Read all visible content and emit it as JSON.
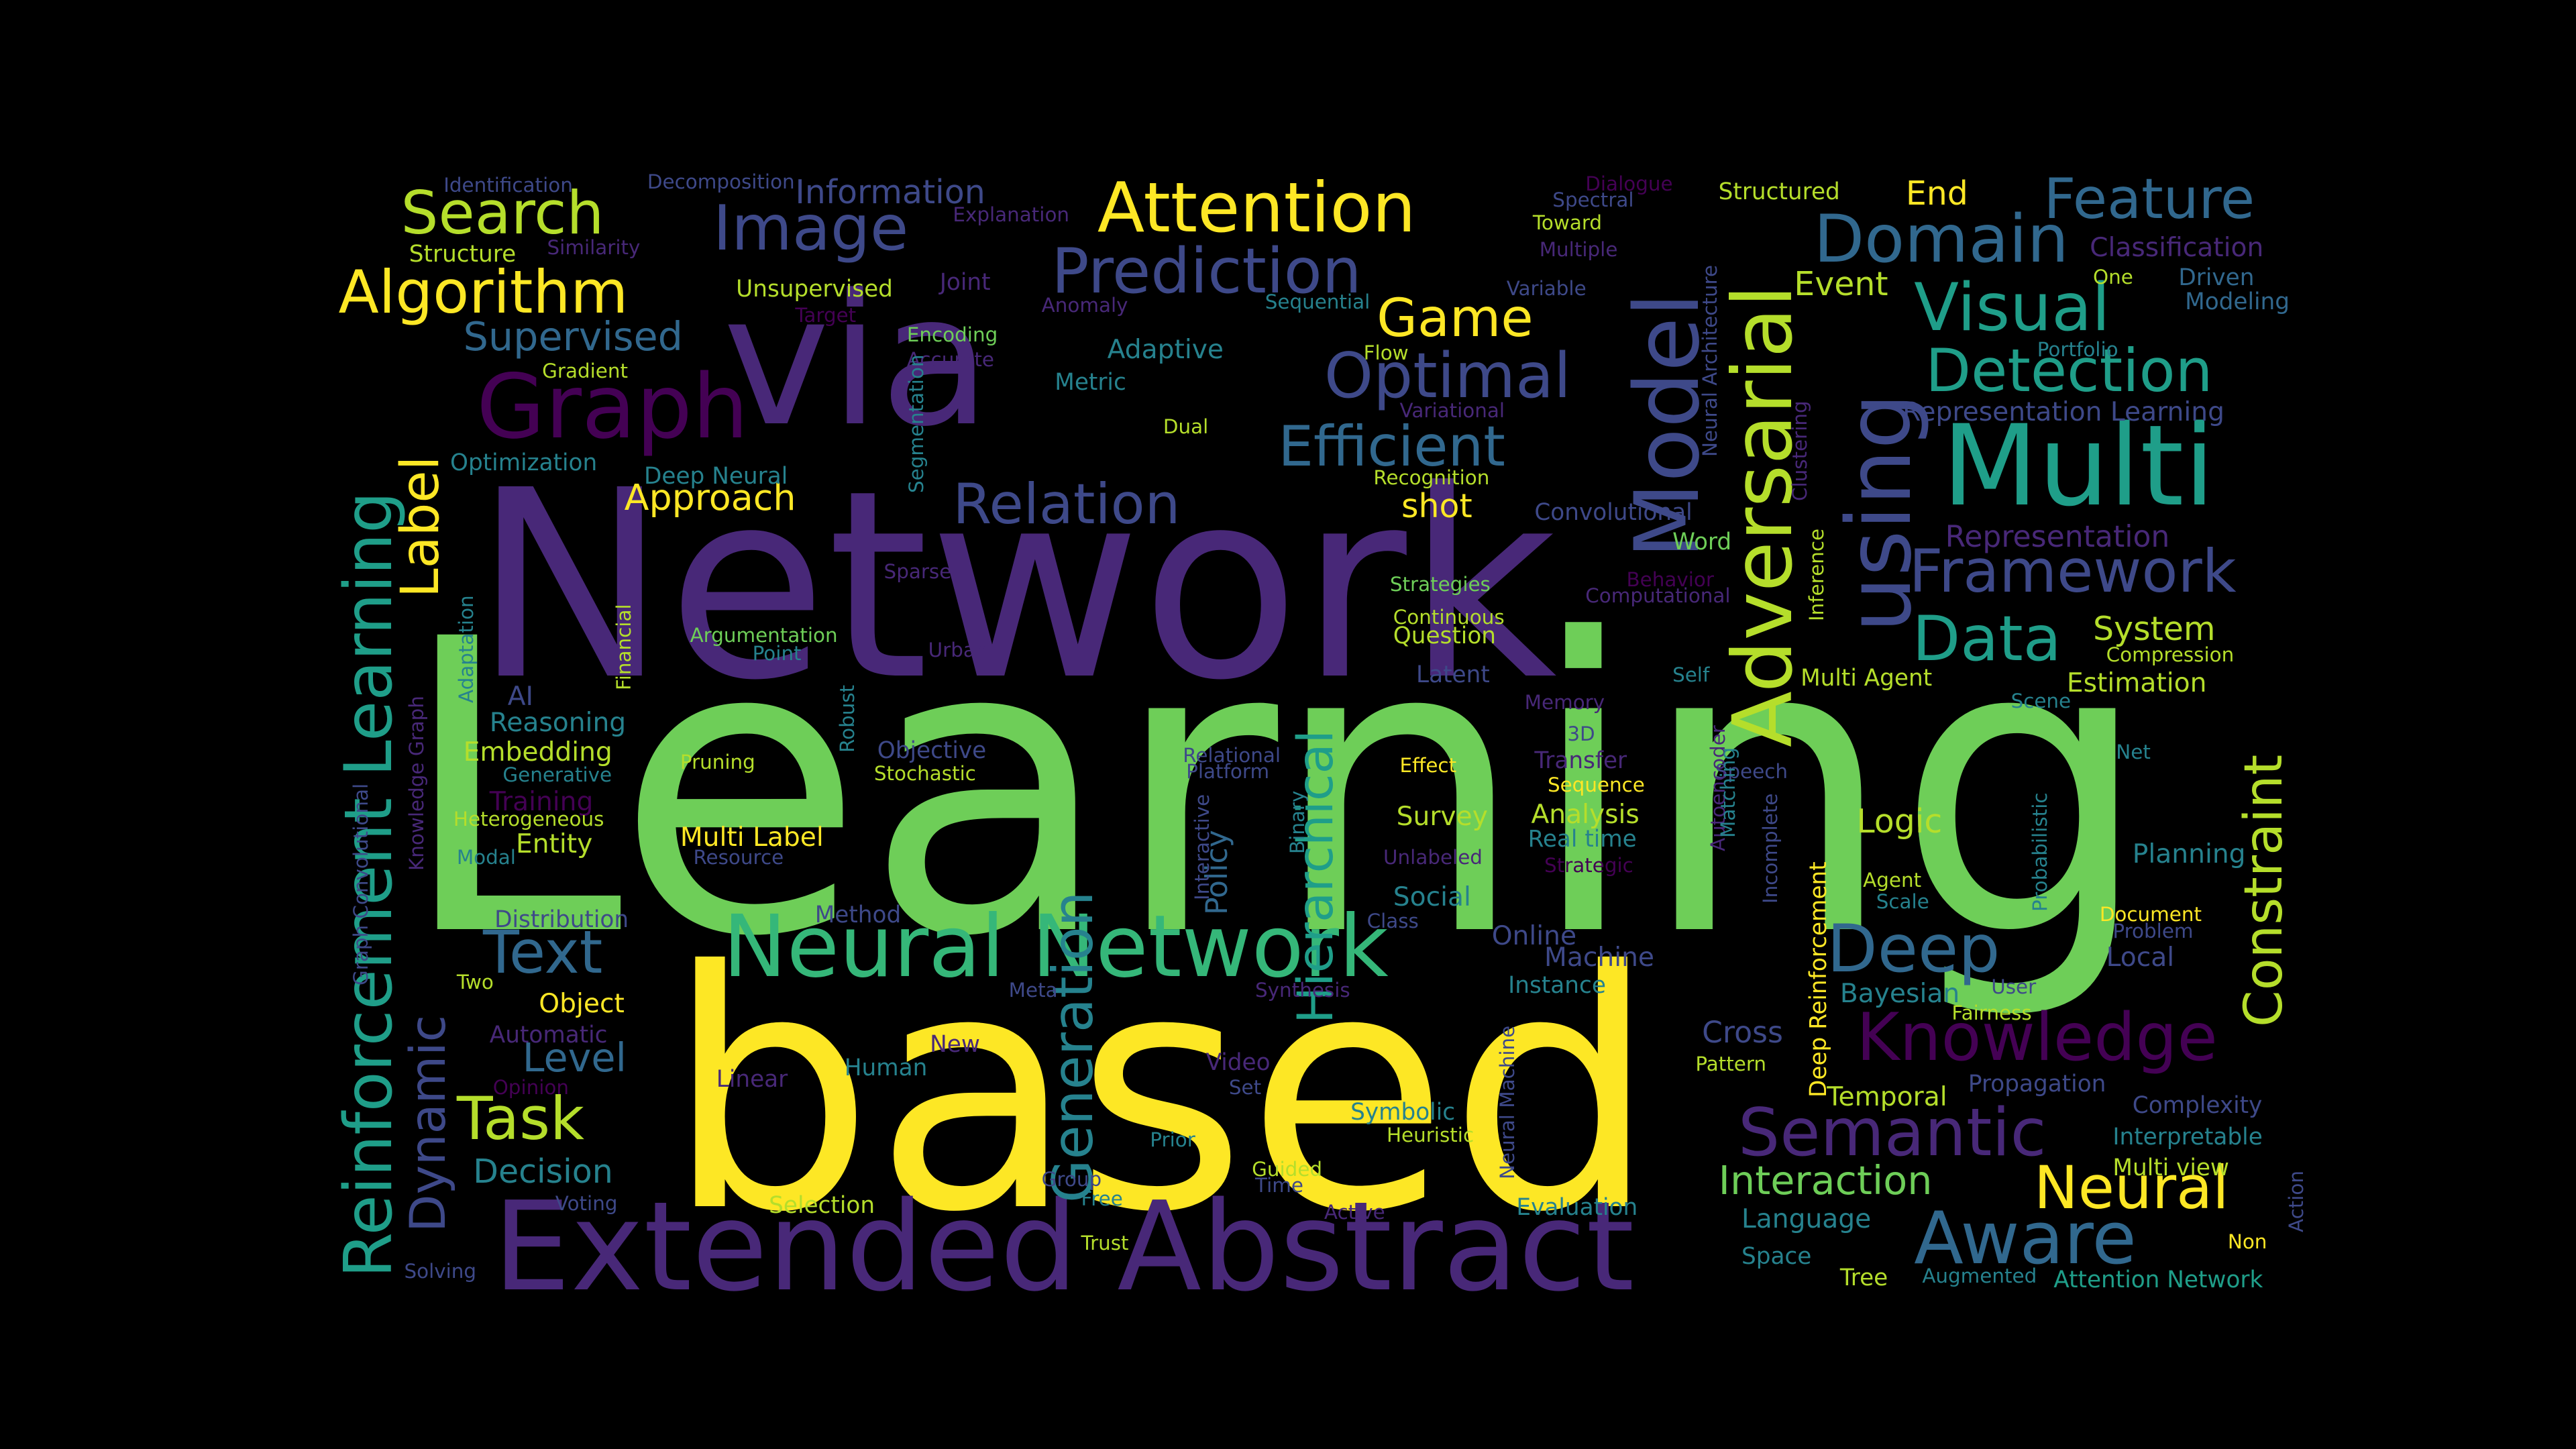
{
  "palette": {
    "purple-dark": "#440154",
    "purple": "#482878",
    "indigo": "#3e4989",
    "blue": "#31688e",
    "teal": "#26828e",
    "teal-green": "#1f9e89",
    "green": "#35b779",
    "lime": "#6ece58",
    "lime-light": "#b5de2b",
    "yellow": "#fde725"
  },
  "words": [
    {
      "text": "Learning",
      "color": "lime"
    },
    {
      "text": "Network",
      "color": "purple"
    },
    {
      "text": "based",
      "color": "yellow"
    },
    {
      "text": "via",
      "color": "purple"
    },
    {
      "text": "Extended Abstract",
      "color": "purple"
    },
    {
      "text": "Multi",
      "color": "teal-green"
    },
    {
      "text": "Neural Network",
      "color": "green"
    },
    {
      "text": "Graph",
      "color": "purple-dark"
    },
    {
      "text": "Model",
      "color": "indigo"
    },
    {
      "text": "Adversarial",
      "color": "lime-light"
    },
    {
      "text": "using",
      "color": "indigo"
    },
    {
      "text": "Reinforcement Learning",
      "color": "teal-green"
    },
    {
      "text": "Knowledge",
      "color": "purple-dark"
    },
    {
      "text": "Semantic",
      "color": "purple"
    },
    {
      "text": "Aware",
      "color": "blue"
    },
    {
      "text": "Deep",
      "color": "blue"
    },
    {
      "text": "Framework",
      "color": "indigo"
    },
    {
      "text": "Detection",
      "color": "teal-green"
    },
    {
      "text": "Visual",
      "color": "teal-green"
    },
    {
      "text": "Domain",
      "color": "blue"
    },
    {
      "text": "Feature",
      "color": "blue"
    },
    {
      "text": "Attention",
      "color": "yellow"
    },
    {
      "text": "Prediction",
      "color": "indigo"
    },
    {
      "text": "Image",
      "color": "indigo"
    },
    {
      "text": "Search",
      "color": "lime-light"
    },
    {
      "text": "Algorithm",
      "color": "yellow"
    },
    {
      "text": "Optimal",
      "color": "indigo"
    },
    {
      "text": "Efficient",
      "color": "blue"
    },
    {
      "text": "Relation",
      "color": "indigo"
    },
    {
      "text": "Game",
      "color": "yellow"
    },
    {
      "text": "Data",
      "color": "teal-green"
    },
    {
      "text": "Text",
      "color": "blue"
    },
    {
      "text": "Task",
      "color": "lime-light"
    },
    {
      "text": "Generation",
      "color": "teal"
    },
    {
      "text": "Hierarchical",
      "color": "teal-green"
    },
    {
      "text": "Constraint",
      "color": "lime-light"
    },
    {
      "text": "Neural",
      "color": "yellow"
    },
    {
      "text": "Interaction",
      "color": "lime"
    },
    {
      "text": "Label",
      "color": "yellow"
    },
    {
      "text": "Dynamic",
      "color": "indigo"
    },
    {
      "text": "Supervised",
      "color": "blue"
    },
    {
      "text": "Approach",
      "color": "yellow"
    },
    {
      "text": "Level",
      "color": "blue"
    },
    {
      "text": "Decision",
      "color": "teal"
    },
    {
      "text": "Policy",
      "color": "blue"
    },
    {
      "text": "Representation",
      "color": "purple"
    },
    {
      "text": "System",
      "color": "lime-light"
    },
    {
      "text": "shot",
      "color": "yellow"
    },
    {
      "text": "Information",
      "color": "indigo"
    },
    {
      "text": "Identification",
      "color": "indigo"
    },
    {
      "text": "Decomposition",
      "color": "indigo"
    },
    {
      "text": "Structure",
      "color": "lime-light"
    },
    {
      "text": "Similarity",
      "color": "purple"
    },
    {
      "text": "Explanation",
      "color": "purple"
    },
    {
      "text": "Dialogue",
      "color": "purple-dark"
    },
    {
      "text": "Spectral",
      "color": "indigo"
    },
    {
      "text": "Structured",
      "color": "lime-light"
    },
    {
      "text": "End",
      "color": "yellow"
    },
    {
      "text": "Toward",
      "color": "lime-light"
    },
    {
      "text": "Multiple",
      "color": "purple"
    },
    {
      "text": "Classification",
      "color": "purple"
    },
    {
      "text": "One",
      "color": "lime-light"
    },
    {
      "text": "Driven",
      "color": "blue"
    },
    {
      "text": "Modeling",
      "color": "blue"
    },
    {
      "text": "Unsupervised",
      "color": "lime-light"
    },
    {
      "text": "Joint",
      "color": "purple"
    },
    {
      "text": "Anomaly",
      "color": "purple"
    },
    {
      "text": "Target",
      "color": "purple-dark"
    },
    {
      "text": "Variable",
      "color": "indigo"
    },
    {
      "text": "Sequential",
      "color": "teal"
    },
    {
      "text": "Event",
      "color": "lime-light"
    },
    {
      "text": "Encoding",
      "color": "lime"
    },
    {
      "text": "Accurate",
      "color": "purple"
    },
    {
      "text": "Adaptive",
      "color": "teal"
    },
    {
      "text": "Flow",
      "color": "lime-light"
    },
    {
      "text": "Portfolio",
      "color": "teal"
    },
    {
      "text": "Gradient",
      "color": "lime-light"
    },
    {
      "text": "Metric",
      "color": "teal"
    },
    {
      "text": "Variational",
      "color": "purple"
    },
    {
      "text": "Representation Learning",
      "color": "indigo"
    },
    {
      "text": "Dual",
      "color": "lime-light"
    },
    {
      "text": "Optimization",
      "color": "teal"
    },
    {
      "text": "Deep Neural",
      "color": "teal"
    },
    {
      "text": "Recognition",
      "color": "lime-light"
    },
    {
      "text": "Convolutional",
      "color": "indigo"
    },
    {
      "text": "Word",
      "color": "lime"
    },
    {
      "text": "Segmentation",
      "color": "teal"
    },
    {
      "text": "Neural Architecture",
      "color": "indigo"
    },
    {
      "text": "Clustering",
      "color": "purple"
    },
    {
      "text": "Sparse",
      "color": "purple"
    },
    {
      "text": "Strategies",
      "color": "lime"
    },
    {
      "text": "Continuous",
      "color": "lime-light"
    },
    {
      "text": "Question",
      "color": "lime-light"
    },
    {
      "text": "Behavior",
      "color": "purple-dark"
    },
    {
      "text": "Computational",
      "color": "purple"
    },
    {
      "text": "Inference",
      "color": "lime-light"
    },
    {
      "text": "Argumentation",
      "color": "lime"
    },
    {
      "text": "Point",
      "color": "teal"
    },
    {
      "text": "Urban",
      "color": "purple"
    },
    {
      "text": "Financial",
      "color": "lime-light"
    },
    {
      "text": "Adaptation",
      "color": "teal"
    },
    {
      "text": "Latent",
      "color": "indigo"
    },
    {
      "text": "Self",
      "color": "teal"
    },
    {
      "text": "Multi Agent",
      "color": "lime-light"
    },
    {
      "text": "Estimation",
      "color": "lime-light"
    },
    {
      "text": "Compression",
      "color": "lime-light"
    },
    {
      "text": "AI",
      "color": "indigo"
    },
    {
      "text": "Reasoning",
      "color": "teal"
    },
    {
      "text": "Robust",
      "color": "teal"
    },
    {
      "text": "Memory",
      "color": "purple"
    },
    {
      "text": "3D",
      "color": "indigo"
    },
    {
      "text": "Scene",
      "color": "teal"
    },
    {
      "text": "Embedding",
      "color": "lime-light"
    },
    {
      "text": "Generative",
      "color": "teal"
    },
    {
      "text": "Objective",
      "color": "indigo"
    },
    {
      "text": "Stochastic",
      "color": "lime-light"
    },
    {
      "text": "Relational",
      "color": "indigo"
    },
    {
      "text": "Platform",
      "color": "indigo"
    },
    {
      "text": "Transfer",
      "color": "purple"
    },
    {
      "text": "Sequence",
      "color": "yellow"
    },
    {
      "text": "Effect",
      "color": "yellow"
    },
    {
      "text": "Speech",
      "color": "indigo"
    },
    {
      "text": "Net",
      "color": "teal"
    },
    {
      "text": "Training",
      "color": "purple-dark"
    },
    {
      "text": "Pruning",
      "color": "lime-light"
    },
    {
      "text": "Heterogeneous",
      "color": "lime-light"
    },
    {
      "text": "Knowledge Graph",
      "color": "purple"
    },
    {
      "text": "Graph Convolutional",
      "color": "indigo"
    },
    {
      "text": "Entity",
      "color": "lime-light"
    },
    {
      "text": "Multi Label",
      "color": "yellow"
    },
    {
      "text": "Resource",
      "color": "indigo"
    },
    {
      "text": "Modal",
      "color": "teal"
    },
    {
      "text": "Interactive",
      "color": "indigo"
    },
    {
      "text": "Binary",
      "color": "teal"
    },
    {
      "text": "Survey",
      "color": "lime-light"
    },
    {
      "text": "Analysis",
      "color": "lime-light"
    },
    {
      "text": "Real time",
      "color": "teal"
    },
    {
      "text": "Unlabeled",
      "color": "purple"
    },
    {
      "text": "Strategic",
      "color": "purple-dark"
    },
    {
      "text": "Autoencoder",
      "color": "purple"
    },
    {
      "text": "Matching",
      "color": "teal"
    },
    {
      "text": "Incomplete",
      "color": "indigo"
    },
    {
      "text": "Deep Reinforcement",
      "color": "yellow"
    },
    {
      "text": "Logic",
      "color": "lime-light"
    },
    {
      "text": "Probabilistic",
      "color": "teal"
    },
    {
      "text": "Planning",
      "color": "teal"
    },
    {
      "text": "Agent",
      "color": "lime-light"
    },
    {
      "text": "Scale",
      "color": "teal"
    },
    {
      "text": "Distribution",
      "color": "indigo"
    },
    {
      "text": "Method",
      "color": "indigo"
    },
    {
      "text": "Class",
      "color": "indigo"
    },
    {
      "text": "Social",
      "color": "teal"
    },
    {
      "text": "Online",
      "color": "indigo"
    },
    {
      "text": "Machine",
      "color": "indigo"
    },
    {
      "text": "Document",
      "color": "yellow"
    },
    {
      "text": "Problem",
      "color": "indigo"
    },
    {
      "text": "Local",
      "color": "indigo"
    },
    {
      "text": "Two",
      "color": "lime-light"
    },
    {
      "text": "Object",
      "color": "yellow"
    },
    {
      "text": "Meta",
      "color": "indigo"
    },
    {
      "text": "Synthesis",
      "color": "purple"
    },
    {
      "text": "Instance",
      "color": "teal"
    },
    {
      "text": "Bayesian",
      "color": "teal"
    },
    {
      "text": "User",
      "color": "indigo"
    },
    {
      "text": "Fairness",
      "color": "lime-light"
    },
    {
      "text": "Automatic",
      "color": "purple"
    },
    {
      "text": "New",
      "color": "purple"
    },
    {
      "text": "Cross",
      "color": "indigo"
    },
    {
      "text": "Pattern",
      "color": "lime-light"
    },
    {
      "text": "Neural Machine",
      "color": "indigo"
    },
    {
      "text": "Propagation",
      "color": "indigo"
    },
    {
      "text": "Opinion",
      "color": "purple-dark"
    },
    {
      "text": "Linear",
      "color": "purple"
    },
    {
      "text": "Human",
      "color": "teal"
    },
    {
      "text": "Video",
      "color": "purple"
    },
    {
      "text": "Set",
      "color": "indigo"
    },
    {
      "text": "Symbolic",
      "color": "teal"
    },
    {
      "text": "Temporal",
      "color": "lime-light"
    },
    {
      "text": "Complexity",
      "color": "indigo"
    },
    {
      "text": "Heuristic",
      "color": "lime-light"
    },
    {
      "text": "Interpretable",
      "color": "teal"
    },
    {
      "text": "Prior",
      "color": "teal"
    },
    {
      "text": "Multi view",
      "color": "lime-light"
    },
    {
      "text": "Guided",
      "color": "lime-light"
    },
    {
      "text": "Time",
      "color": "indigo"
    },
    {
      "text": "Group",
      "color": "indigo"
    },
    {
      "text": "Free",
      "color": "teal"
    },
    {
      "text": "Action",
      "color": "indigo"
    },
    {
      "text": "Voting",
      "color": "indigo"
    },
    {
      "text": "Selection",
      "color": "lime-light"
    },
    {
      "text": "Active",
      "color": "purple"
    },
    {
      "text": "Evaluation",
      "color": "teal"
    },
    {
      "text": "Language",
      "color": "teal"
    },
    {
      "text": "Non",
      "color": "yellow"
    },
    {
      "text": "Trust",
      "color": "lime-light"
    },
    {
      "text": "Space",
      "color": "teal"
    },
    {
      "text": "Solving",
      "color": "indigo"
    },
    {
      "text": "Tree",
      "color": "lime-light"
    },
    {
      "text": "Augmented",
      "color": "teal"
    },
    {
      "text": "Attention Network",
      "color": "teal-green"
    }
  ]
}
